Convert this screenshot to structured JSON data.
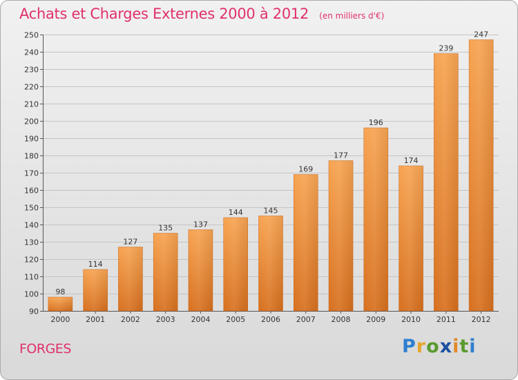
{
  "header": {
    "title": "Achats et Charges Externes 2000 à 2012",
    "subtitle": "(en milliers d'€)"
  },
  "footer": {
    "commune": "FORGES",
    "logo_letters": [
      "P",
      "r",
      "o",
      "x",
      "i",
      "t",
      "i"
    ]
  },
  "colors": {
    "title": "#e0306d",
    "bar_light": "#f7a452",
    "bar_dark": "#d7701f",
    "background_top": "#f1f1f1",
    "background_bottom": "#d9d9d9"
  },
  "chart_data": {
    "type": "bar",
    "title": "Achats et Charges Externes 2000 à 2012",
    "subtitle": "(en milliers d'€)",
    "categories": [
      "2000",
      "2001",
      "2002",
      "2003",
      "2004",
      "2005",
      "2006",
      "2007",
      "2008",
      "2009",
      "2010",
      "2011",
      "2012"
    ],
    "values": [
      98,
      114,
      127,
      135,
      137,
      144,
      145,
      169,
      177,
      196,
      174,
      239,
      247
    ],
    "ylim": [
      90,
      250
    ],
    "yticks": [
      90,
      100,
      110,
      120,
      130,
      140,
      150,
      160,
      170,
      180,
      190,
      200,
      210,
      220,
      230,
      240,
      250
    ],
    "grid": true,
    "data_labels": true
  }
}
